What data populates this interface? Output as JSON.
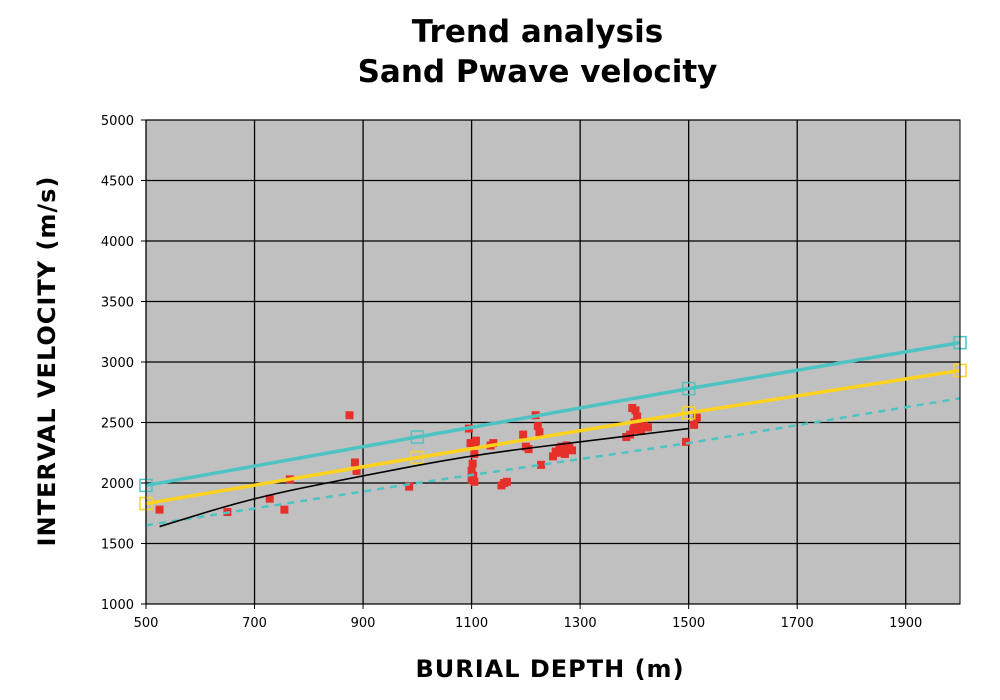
{
  "chart_data": {
    "type": "scatter",
    "title": "Trend analysis",
    "subtitle": "Sand Pwave velocity",
    "xlabel": "BURIAL DEPTH (m)",
    "ylabel": "INTERVAL VELOCITY (m/s)",
    "xlim": [
      500,
      2000
    ],
    "ylim": [
      1000,
      5000
    ],
    "x_ticks": [
      500,
      700,
      900,
      1100,
      1300,
      1500,
      1700,
      1900
    ],
    "y_ticks": [
      1000,
      1500,
      2000,
      2500,
      3000,
      3500,
      4000,
      4500,
      5000
    ],
    "grid": true,
    "plot_background": "#c0c0c0",
    "series": [
      {
        "kind": "points",
        "color": "#e8302a",
        "x": [
          525,
          650,
          728,
          755,
          765,
          875,
          885,
          888,
          985,
          1095,
          1098,
          1100,
          1100,
          1102,
          1103,
          1105,
          1105,
          1107,
          1108,
          1135,
          1140,
          1155,
          1160,
          1165,
          1195,
          1200,
          1205,
          1218,
          1222,
          1225,
          1228,
          1250,
          1255,
          1258,
          1262,
          1265,
          1270,
          1272,
          1275,
          1280,
          1285,
          1385,
          1392,
          1396,
          1398,
          1400,
          1402,
          1405,
          1408,
          1410,
          1412,
          1418,
          1425,
          1495,
          1510,
          1515
        ],
        "y": [
          1780,
          1760,
          1870,
          1780,
          2030,
          2560,
          2170,
          2100,
          1970,
          2450,
          2330,
          2100,
          2030,
          2160,
          2060,
          2010,
          2240,
          2330,
          2350,
          2310,
          2330,
          1980,
          2000,
          2010,
          2400,
          2300,
          2280,
          2560,
          2470,
          2420,
          2150,
          2220,
          2260,
          2250,
          2280,
          2300,
          2260,
          2240,
          2310,
          2290,
          2270,
          2380,
          2400,
          2620,
          2440,
          2500,
          2600,
          2550,
          2450,
          2480,
          2430,
          2470,
          2460,
          2340,
          2480,
          2540
        ]
      },
      {
        "kind": "line",
        "color": "#4ec3c3",
        "markers": true,
        "x": [
          500,
          1000,
          1500,
          2000
        ],
        "y": [
          1980,
          2380,
          2780,
          3160
        ]
      },
      {
        "kind": "line",
        "color": "#ffd21e",
        "markers": true,
        "x": [
          500,
          1000,
          1500,
          2000
        ],
        "y": [
          1830,
          2210,
          2580,
          2930
        ]
      },
      {
        "kind": "dashed",
        "color": "#4ec3c3",
        "x": [
          500,
          1000,
          1500,
          2000
        ],
        "y": [
          1650,
          2000,
          2330,
          2700
        ]
      },
      {
        "kind": "curve",
        "color": "#000000",
        "x": [
          525,
          700,
          900,
          1100,
          1300,
          1500
        ],
        "y": [
          1640,
          1880,
          2060,
          2230,
          2340,
          2450
        ]
      }
    ]
  }
}
